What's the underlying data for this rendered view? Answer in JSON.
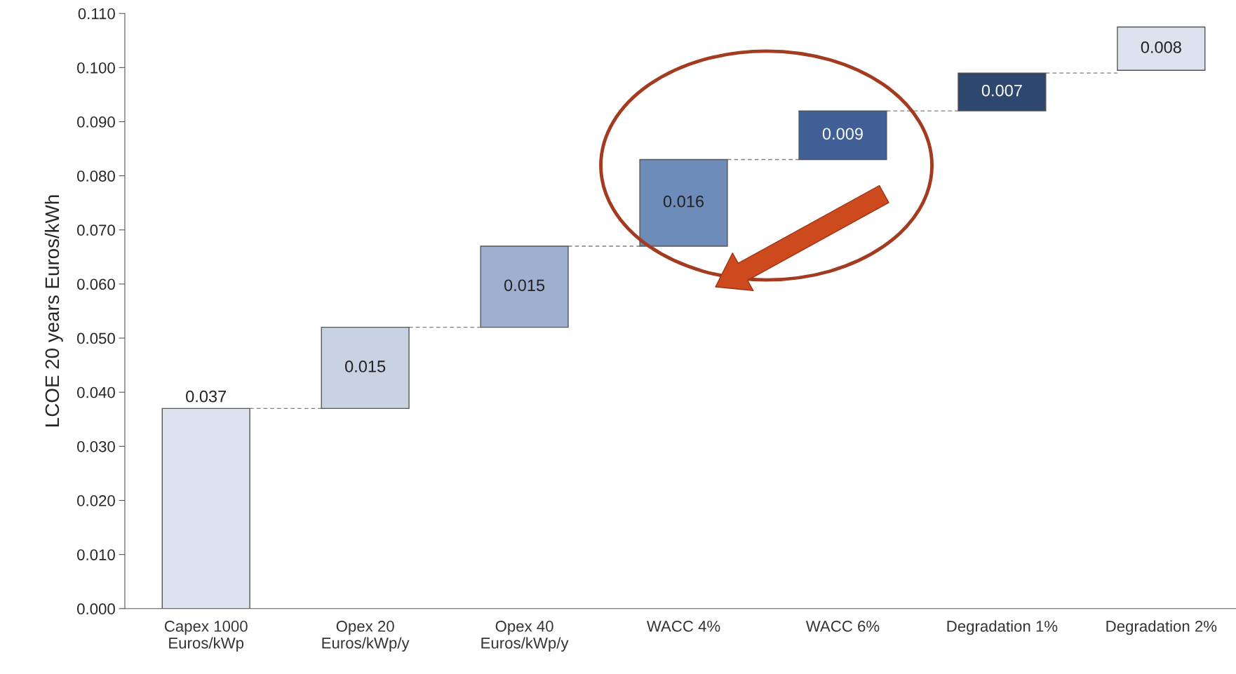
{
  "chart_data": {
    "type": "bar",
    "ylabel": "LCOE 20 years Euros/kWh",
    "categories": [
      "Capex 1000\nEuros/kWp",
      "Opex 20\nEuros/kWp/y",
      "Opex 40\nEuros/kWp/y",
      "WACC 4%",
      "WACC 6%",
      "Degradation 1%",
      "Degradation 2%"
    ],
    "values": [
      0.037,
      0.015,
      0.015,
      0.016,
      0.009,
      0.007,
      0.008
    ],
    "base": [
      0,
      0.037,
      0.052,
      0.067,
      0.083,
      0.092,
      0.0995
    ],
    "colors": [
      "#dde3ee",
      "#c8d2e3",
      "#9eafcf",
      "#6e8cba",
      "#3f5f96",
      "#2d476f",
      "#dde3ee"
    ],
    "data_labels": true,
    "ylim": [
      0,
      0.11
    ],
    "yticks": [
      {
        "value": 0,
        "label": "0.000"
      },
      {
        "value": 0.01,
        "label": "0.010"
      },
      {
        "value": 0.02,
        "label": "0.020"
      },
      {
        "value": 0.03,
        "label": "0.030"
      },
      {
        "value": 0.04,
        "label": "0.040"
      },
      {
        "value": 0.05,
        "label": "0.050"
      },
      {
        "value": 0.06,
        "label": "0.060"
      },
      {
        "value": 0.07,
        "label": "0.070"
      },
      {
        "value": 0.08,
        "label": "0.080"
      },
      {
        "value": 0.09,
        "label": "0.090"
      },
      {
        "value": 0.1,
        "label": "0.100"
      },
      {
        "value": 0.11,
        "label": "0.110"
      }
    ],
    "grid": false
  }
}
